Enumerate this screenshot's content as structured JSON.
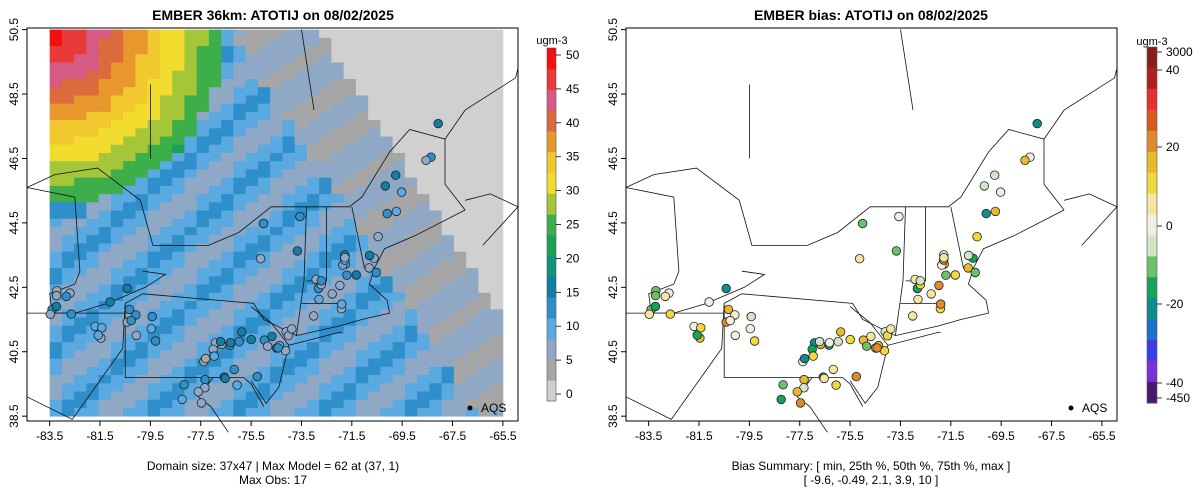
{
  "left_panel": {
    "title": "EMBER 36km: ATOTIJ on 08/02/2025",
    "footer_line1": "Domain size: 37x47 | Max Model = 62 at (37, 1)",
    "footer_line2": "Max Obs: 17",
    "legend_unit": "ugm-3",
    "legend_ticks": [
      "50",
      "45",
      "40",
      "35",
      "30",
      "25",
      "20",
      "15",
      "10",
      "5",
      "0"
    ],
    "marker_label": "AQS"
  },
  "right_panel": {
    "title": "EMBER bias: ATOTIJ on 08/02/2025",
    "footer_line1": "Bias Summary: [ min, 25th %, 50th %, 75th %, max ]",
    "footer_line2": "[ -9.6,   -0.49,   2.1,   3.9,   10 ]",
    "legend_unit": "ugm-3",
    "legend_ticks": [
      "3000",
      "40",
      "20",
      "0",
      "-20",
      "-40",
      "-450"
    ],
    "marker_label": "AQS"
  },
  "axes": {
    "x_ticks": [
      "-83.5",
      "-81.5",
      "-79.5",
      "-77.5",
      "-75.5",
      "-73.5",
      "-71.5",
      "-69.5",
      "-67.5",
      "-65.5"
    ],
    "y_ticks": [
      "38.5",
      "40.5",
      "42.5",
      "44.5",
      "46.5",
      "48.5",
      "50.5"
    ],
    "lon_range": [
      -84.4,
      -64.9
    ],
    "lat_range": [
      38.35,
      50.55
    ]
  },
  "colors": {
    "model_scale": [
      "#d0d0d0",
      "#a6a6a6",
      "#8fa8c6",
      "#5aa9e0",
      "#2e8fcb",
      "#127ea6",
      "#11927f",
      "#1aa158",
      "#3cae4a",
      "#a6c63a",
      "#f2dd2f",
      "#f1c92e",
      "#e8972d",
      "#dc6a3c",
      "#d65a85",
      "#e93a3a",
      "#f40f0f"
    ],
    "bias_scale": [
      "#4a1a6b",
      "#7b2fd4",
      "#3c3ce8",
      "#1d6fd0",
      "#0d8d8d",
      "#15a35a",
      "#6cc06a",
      "#cfe7c7",
      "#f0f0e0",
      "#f2e6a0",
      "#f0d840",
      "#e9b92b",
      "#dd8a2a",
      "#d85a22",
      "#e83030",
      "#b02020",
      "#8c1d1d"
    ],
    "frame": "#000000"
  }
}
